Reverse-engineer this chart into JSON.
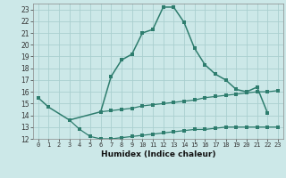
{
  "xlabel": "Humidex (Indice chaleur)",
  "main_x": [
    0,
    1,
    3,
    6,
    7,
    8,
    9,
    10,
    11,
    12,
    13,
    14,
    15,
    16,
    17,
    18,
    19,
    20,
    21,
    22
  ],
  "main_y": [
    15.5,
    14.7,
    13.6,
    14.3,
    17.3,
    18.7,
    19.2,
    21.0,
    21.3,
    23.2,
    23.2,
    21.9,
    19.7,
    18.3,
    17.5,
    17.0,
    16.2,
    16.0,
    16.4,
    14.2
  ],
  "upper_x": [
    6,
    7,
    8,
    9,
    10,
    11,
    12,
    13,
    14,
    15,
    16,
    17,
    18,
    19,
    20,
    21,
    22,
    23
  ],
  "upper_y": [
    14.3,
    14.4,
    14.5,
    14.6,
    14.8,
    14.9,
    15.0,
    15.1,
    15.2,
    15.3,
    15.5,
    15.6,
    15.7,
    15.8,
    15.9,
    16.0,
    16.0,
    16.1
  ],
  "lower_x": [
    3,
    4,
    5,
    6,
    7,
    8,
    9,
    10,
    11,
    12,
    13,
    14,
    15,
    16,
    17,
    18,
    19,
    20,
    21,
    22,
    23
  ],
  "lower_y": [
    13.6,
    12.8,
    12.2,
    12.0,
    12.0,
    12.1,
    12.2,
    12.3,
    12.4,
    12.5,
    12.6,
    12.7,
    12.8,
    12.8,
    12.9,
    13.0,
    13.0,
    13.0,
    13.0,
    13.0,
    13.0
  ],
  "line_color": "#2e7d6e",
  "bg_color": "#cce8e8",
  "grid_color": "#aacfcf",
  "ylim": [
    12,
    23.5
  ],
  "yticks": [
    12,
    13,
    14,
    15,
    16,
    17,
    18,
    19,
    20,
    21,
    22,
    23
  ],
  "xlim": [
    -0.5,
    23.5
  ],
  "xticks": [
    0,
    1,
    2,
    3,
    4,
    5,
    6,
    7,
    8,
    9,
    10,
    11,
    12,
    13,
    14,
    15,
    16,
    17,
    18,
    19,
    20,
    21,
    22,
    23
  ],
  "xtick_labels": [
    "0",
    "1",
    "2",
    "3",
    "4",
    "5",
    "6",
    "7",
    "8",
    "9",
    "10",
    "11",
    "12",
    "13",
    "14",
    "15",
    "16",
    "17",
    "18",
    "19",
    "20",
    "21",
    "22",
    "23"
  ]
}
